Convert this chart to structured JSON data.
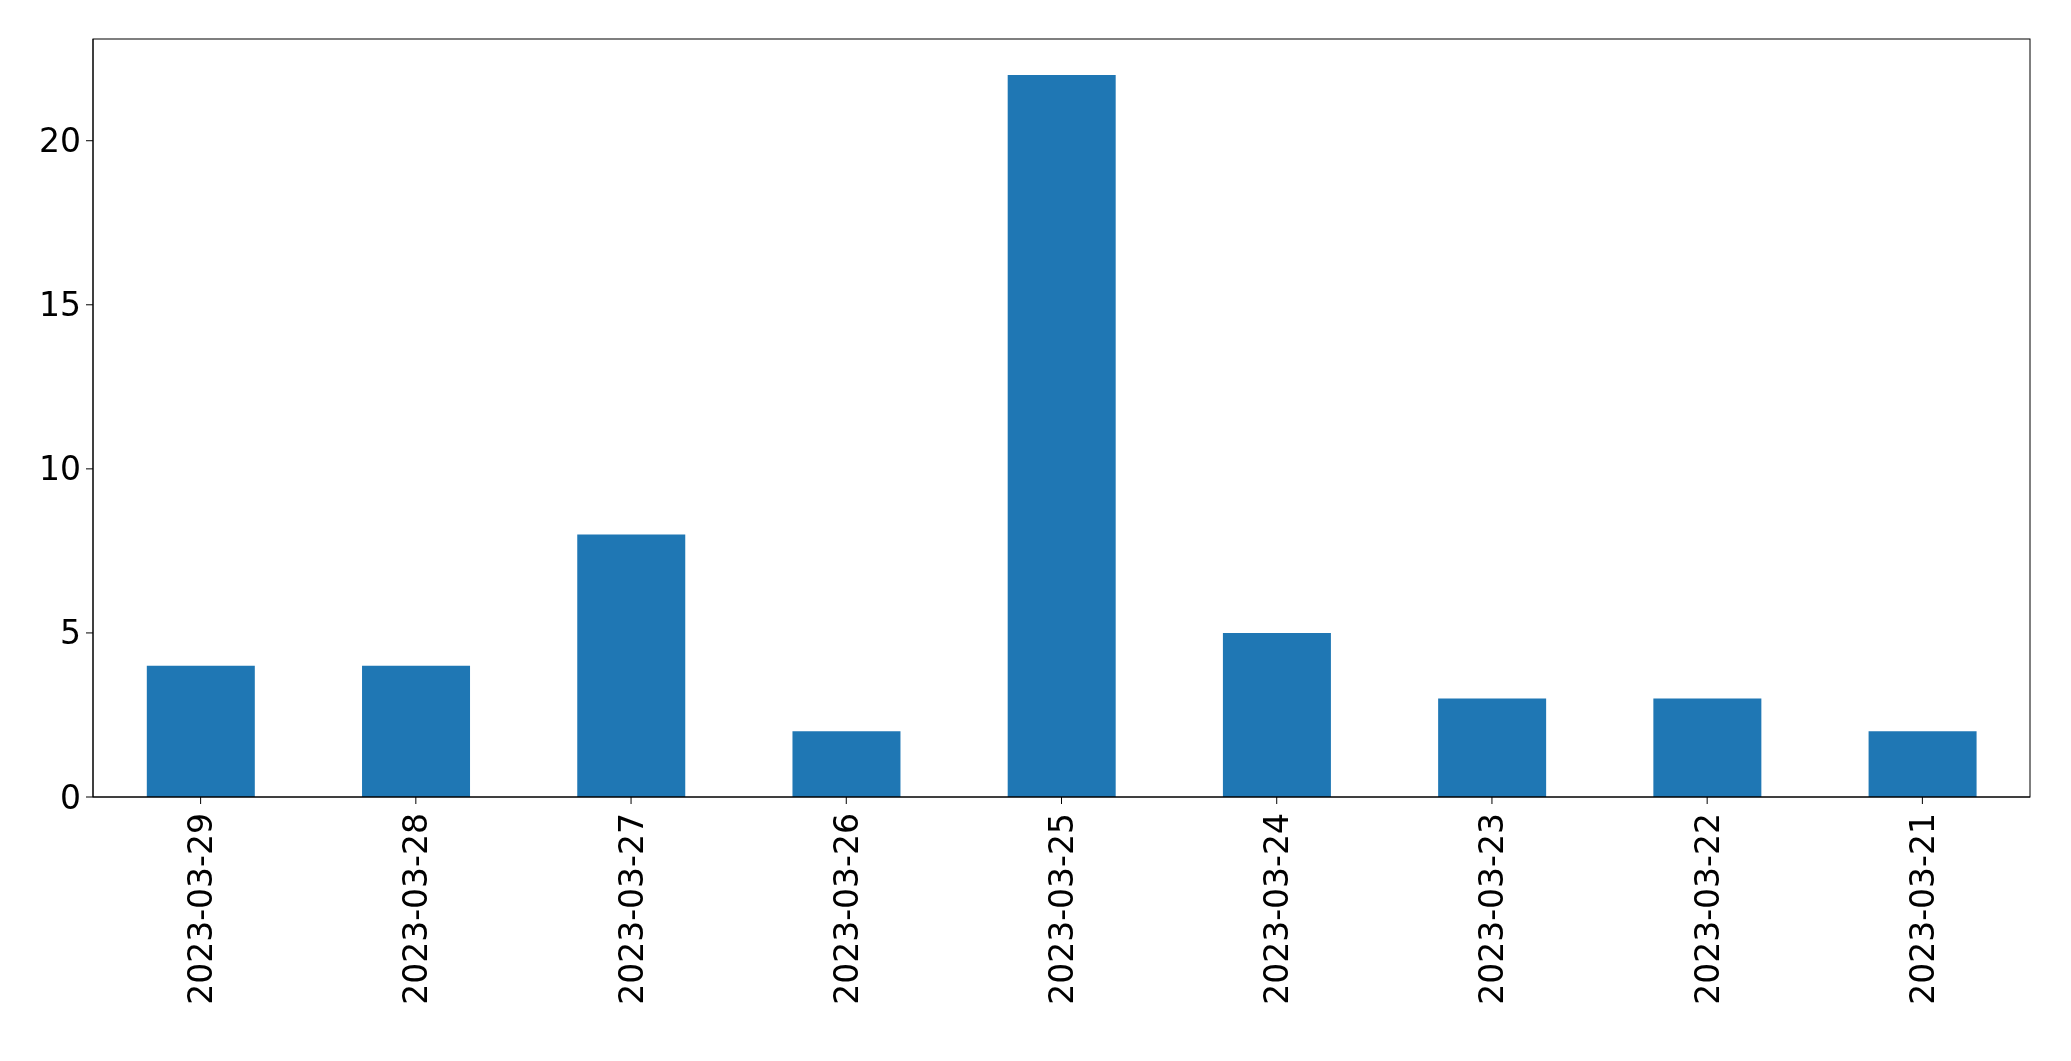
{
  "chart_data": {
    "type": "bar",
    "categories": [
      "2023-03-29",
      "2023-03-28",
      "2023-03-27",
      "2023-03-26",
      "2023-03-25",
      "2023-03-24",
      "2023-03-23",
      "2023-03-22",
      "2023-03-21"
    ],
    "values": [
      4,
      4,
      8,
      2,
      22,
      5,
      3,
      3,
      2
    ],
    "color": "#1f77b4",
    "ylim": [
      0,
      23.1
    ],
    "yticks": [
      0,
      5,
      10,
      15,
      20
    ]
  }
}
